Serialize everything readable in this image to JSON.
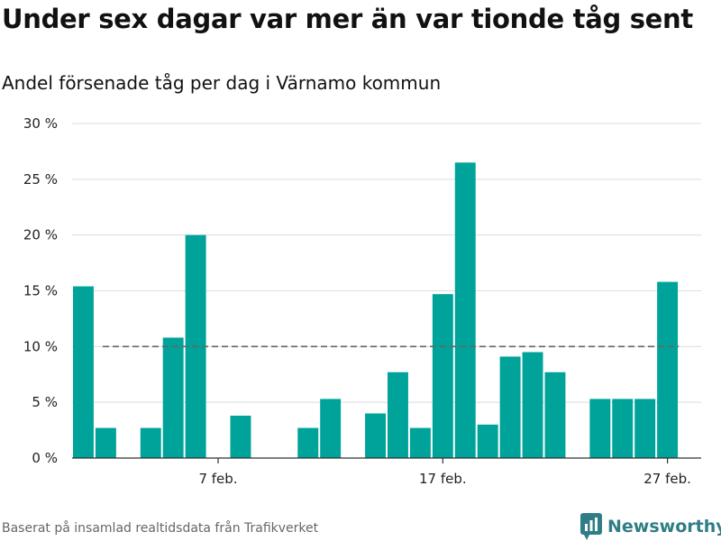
{
  "title": "Under sex dagar var mer än var tionde tåg sent",
  "subtitle": "Andel försenade tåg per dag i Värnamo kommun",
  "source": "Baserat på insamlad realtidsdata från Trafikverket",
  "brand": {
    "name": "Newsworthy",
    "icon": "newsworthy-logo-icon"
  },
  "colors": {
    "bar": "#00a39a",
    "grid": "#dddddd",
    "reference": "#666666",
    "brand": "#2f7d86"
  },
  "chart_data": {
    "type": "bar",
    "x": [
      1,
      2,
      3,
      4,
      5,
      6,
      7,
      8,
      9,
      10,
      11,
      12,
      13,
      14,
      15,
      16,
      17,
      18,
      19,
      20,
      21,
      22,
      23,
      24,
      25,
      26,
      27,
      28
    ],
    "values": [
      15.4,
      2.7,
      null,
      2.7,
      10.8,
      20.0,
      null,
      3.8,
      null,
      null,
      2.7,
      5.3,
      null,
      4.0,
      7.7,
      2.7,
      14.7,
      26.5,
      3.0,
      9.1,
      9.5,
      7.7,
      null,
      5.3,
      5.3,
      5.3,
      15.8,
      null
    ],
    "x_ticks": [
      {
        "x": 7,
        "label": "7 feb."
      },
      {
        "x": 17,
        "label": "17 feb."
      },
      {
        "x": 27,
        "label": "27 feb."
      }
    ],
    "y_ticks": [
      {
        "value": 0,
        "label": "0 %"
      },
      {
        "value": 5,
        "label": "5 %"
      },
      {
        "value": 10,
        "label": "10 %"
      },
      {
        "value": 15,
        "label": "15 %"
      },
      {
        "value": 20,
        "label": "20 %"
      },
      {
        "value": 25,
        "label": "25 %"
      },
      {
        "value": 30,
        "label": "30 %"
      }
    ],
    "ylim": [
      0,
      30
    ],
    "xlim": [
      0.5,
      28.5
    ],
    "reference_line": {
      "value": 10,
      "style": "dashed",
      "x_from": 0.5,
      "x_to": 27.5
    },
    "grid": true
  }
}
